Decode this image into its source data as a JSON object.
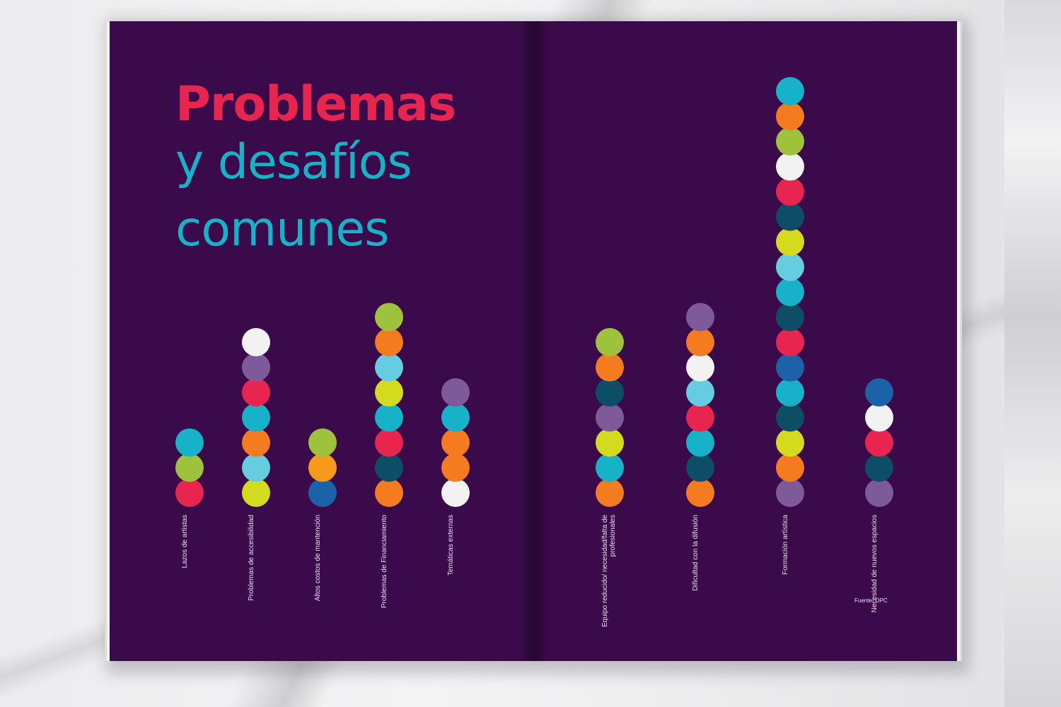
{
  "title": {
    "line1": "Problemas",
    "line2": "y desafíos",
    "line3": "comunes"
  },
  "source": "Fuente: OPC",
  "colors": {
    "page_background": "#3a0a4a",
    "title_primary": "#e8254e",
    "title_secondary": "#17b2c8",
    "red": "#e8254e",
    "teal": "#17b2c8",
    "lime": "#9fc23c",
    "white": "#f2f2f2",
    "purple": "#7e5a9a",
    "orange": "#f47b20",
    "light_blue": "#66cde0",
    "yellow": "#d4db1e",
    "dark_teal": "#0e4d66",
    "blue": "#1c62a8",
    "amber": "#f79a1b"
  },
  "chart_data": {
    "type": "bar",
    "style": "stacked colored dots per category",
    "categories": [
      "Lazos de artistas",
      "Problemas de accesibilidad",
      "Altos costos de mantención",
      "Problemas de Financiamiento",
      "Temáticas externas",
      "Equipo reducido/ necesidad/falta de profesionales",
      "Dificultad con la difusión",
      "Formación artística",
      "Necesidad de nuevos espacios"
    ],
    "values": [
      3,
      7,
      3,
      8,
      5,
      7,
      8,
      17,
      5
    ],
    "dot_colors": [
      [
        "red",
        "lime",
        "teal"
      ],
      [
        "yellow",
        "light_blue",
        "orange",
        "teal",
        "red",
        "purple",
        "white"
      ],
      [
        "blue",
        "amber",
        "lime"
      ],
      [
        "orange",
        "dark_teal",
        "red",
        "teal",
        "yellow",
        "light_blue",
        "orange",
        "lime"
      ],
      [
        "white",
        "orange",
        "orange",
        "teal",
        "purple"
      ],
      [
        "orange",
        "teal",
        "yellow",
        "purple",
        "dark_teal",
        "orange",
        "lime"
      ],
      [
        "orange",
        "dark_teal",
        "teal",
        "red",
        "light_blue",
        "white",
        "orange",
        "purple"
      ],
      [
        "purple",
        "orange",
        "yellow",
        "dark_teal",
        "teal",
        "blue",
        "red",
        "dark_teal",
        "teal",
        "light_blue",
        "yellow",
        "dark_teal",
        "red",
        "white",
        "lime",
        "orange",
        "teal"
      ],
      [
        "purple",
        "dark_teal",
        "red",
        "white",
        "blue"
      ]
    ],
    "grid": false,
    "legend": "none"
  }
}
